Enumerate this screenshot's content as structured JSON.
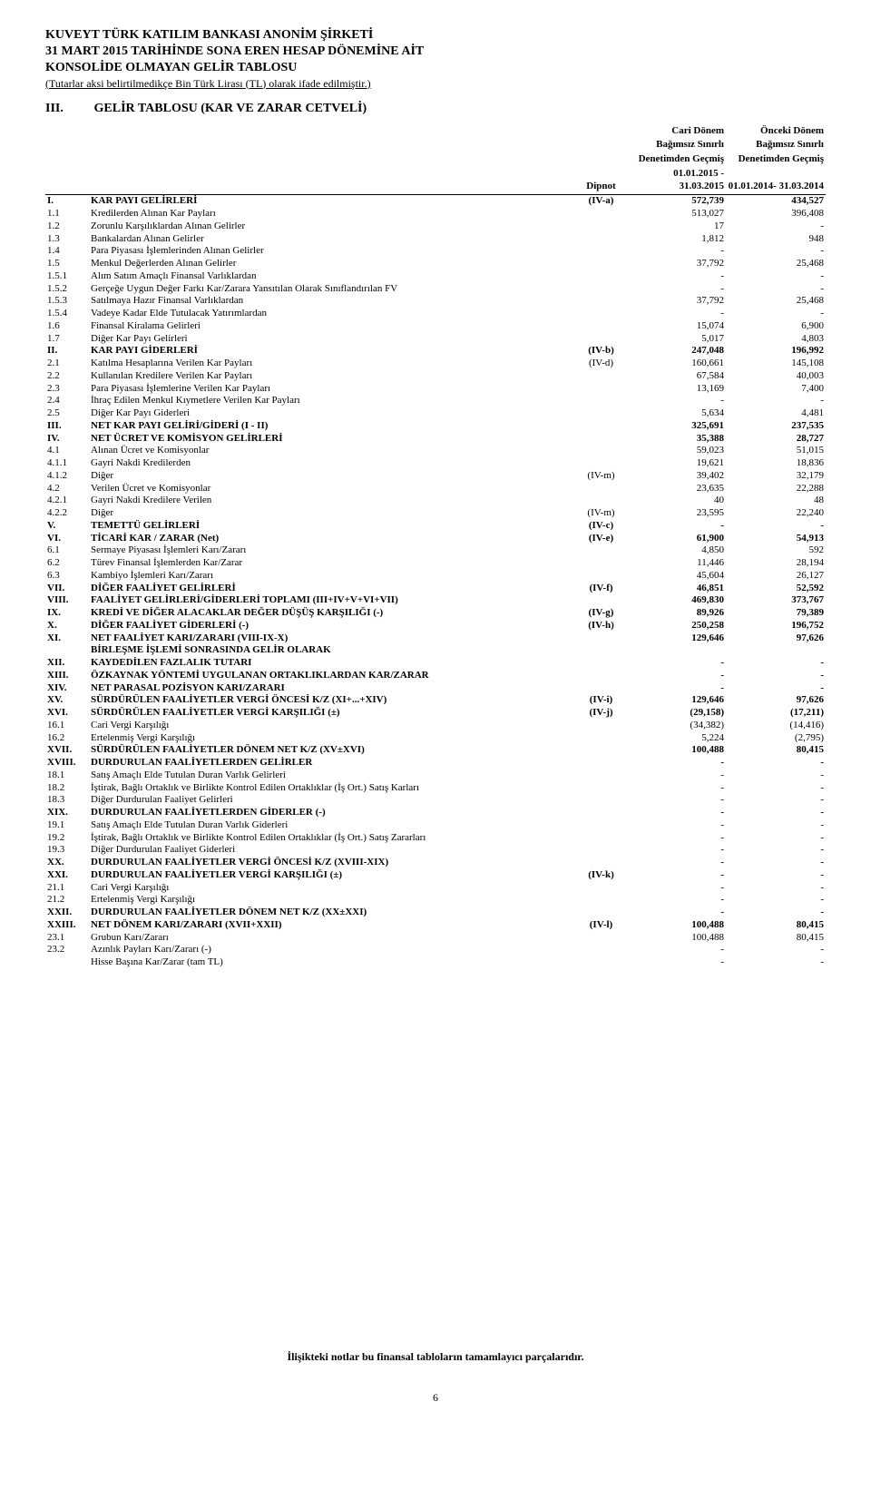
{
  "header": {
    "line1": "KUVEYT TÜRK KATILIM BANKASI ANONİM ŞİRKETİ",
    "line2": "31 MART  2015 TARİHİNDE SONA EREN HESAP DÖNEMİNE AİT",
    "line3": "KONSOLİDE OLMAYAN GELİR TABLOSU",
    "sub": "(Tutarlar aksi belirtilmedikçe Bin Türk Lirası (TL) olarak ifade edilmiştir.)"
  },
  "section": {
    "roman": "III.",
    "title": "GELİR TABLOSU (KAR VE ZARAR CETVELİ)"
  },
  "cols": {
    "note": "Dipnot",
    "cur1": "Cari Dönem",
    "cur2": "Bağımsız Sınırlı",
    "cur3": "Denetimden Geçmiş",
    "cur4": "01.01.2015 - 31.03.2015",
    "prev1": "Önceki Dönem",
    "prev2": "Bağımsız Sınırlı",
    "prev3": "Denetimden Geçmiş",
    "prev4": "01.01.2014- 31.03.2014"
  },
  "rows": [
    {
      "c": "I.",
      "l": "KAR PAYI GELİRLERİ",
      "n": "(IV-a)",
      "v1": "572,739",
      "v2": "434,527",
      "b": true
    },
    {
      "c": "1.1",
      "l": "Kredilerden Alınan Kar Payları",
      "v1": "513,027",
      "v2": "396,408"
    },
    {
      "c": "1.2",
      "l": "Zorunlu Karşılıklardan Alınan Gelirler",
      "v1": "17",
      "v2": "-"
    },
    {
      "c": "1.3",
      "l": "Bankalardan Alınan Gelirler",
      "v1": "1,812",
      "v2": "948"
    },
    {
      "c": "1.4",
      "l": "Para Piyasası İşlemlerinden Alınan Gelirler",
      "v1": "-",
      "v2": "-"
    },
    {
      "c": "1.5",
      "l": "Menkul Değerlerden Alınan Gelirler",
      "v1": "37,792",
      "v2": "25,468"
    },
    {
      "c": "1.5.1",
      "l": "Alım Satım Amaçlı Finansal Varlıklardan",
      "v1": "-",
      "v2": "-"
    },
    {
      "c": "1.5.2",
      "l": "Gerçeğe Uygun Değer Farkı Kar/Zarara Yansıtılan Olarak Sınıflandırılan FV",
      "v1": "-",
      "v2": "-"
    },
    {
      "c": "1.5.3",
      "l": "Satılmaya Hazır Finansal Varlıklardan",
      "v1": "37,792",
      "v2": "25,468"
    },
    {
      "c": "1.5.4",
      "l": "Vadeye Kadar Elde Tutulacak Yatırımlardan",
      "v1": "-",
      "v2": "-"
    },
    {
      "c": "1.6",
      "l": "Finansal Kiralama Gelirleri",
      "v1": "15,074",
      "v2": "6,900"
    },
    {
      "c": "1.7",
      "l": "Diğer Kar Payı Gelirleri",
      "v1": "5,017",
      "v2": "4,803"
    },
    {
      "c": "II.",
      "l": "KAR PAYI GİDERLERİ",
      "n": "(IV-b)",
      "v1": "247,048",
      "v2": "196,992",
      "b": true
    },
    {
      "c": "2.1",
      "l": "Katılma Hesaplarına Verilen Kar Payları",
      "n": "(IV-d)",
      "v1": "160,661",
      "v2": "145,108"
    },
    {
      "c": "2.2",
      "l": "Kullanılan Kredilere Verilen Kar Payları",
      "v1": "67,584",
      "v2": "40,003"
    },
    {
      "c": "2.3",
      "l": "Para Piyasası İşlemlerine Verilen Kar Payları",
      "v1": "13,169",
      "v2": "7,400"
    },
    {
      "c": "2.4",
      "l": "İhraç Edilen Menkul Kıymetlere Verilen Kar Payları",
      "v1": "-",
      "v2": "-"
    },
    {
      "c": "2.5",
      "l": "Diğer Kar Payı Giderleri",
      "v1": "5,634",
      "v2": "4,481"
    },
    {
      "c": "III.",
      "l": "NET KAR PAYI GELİRİ/GİDERİ  (I - II)",
      "v1": "325,691",
      "v2": "237,535",
      "b": true
    },
    {
      "c": "IV.",
      "l": "NET ÜCRET VE KOMİSYON GELİRLERİ",
      "v1": "35,388",
      "v2": "28,727",
      "b": true
    },
    {
      "c": "4.1",
      "l": "Alınan Ücret ve Komisyonlar",
      "v1": "59,023",
      "v2": "51,015"
    },
    {
      "c": "4.1.1",
      "l": "Gayri Nakdi Kredilerden",
      "v1": "19,621",
      "v2": "18,836"
    },
    {
      "c": "4.1.2",
      "l": "Diğer",
      "n": "(IV-m)",
      "v1": "39,402",
      "v2": "32,179"
    },
    {
      "c": "4.2",
      "l": "Verilen Ücret ve Komisyonlar",
      "v1": "23,635",
      "v2": "22,288"
    },
    {
      "c": "4.2.1",
      "l": "Gayri Nakdi Kredilere Verilen",
      "v1": "40",
      "v2": "48"
    },
    {
      "c": "4.2.2",
      "l": "Diğer",
      "n": "(IV-m)",
      "v1": "23,595",
      "v2": "22,240"
    },
    {
      "c": "V.",
      "l": "TEMETTÜ GELİRLERİ",
      "n": "(IV-c)",
      "v1": "-",
      "v2": "-",
      "b": true
    },
    {
      "c": "VI.",
      "l": "TİCARİ KAR / ZARAR (Net)",
      "n": "(IV-e)",
      "v1": "61,900",
      "v2": "54,913",
      "b": true
    },
    {
      "c": "6.1",
      "l": "Sermaye Piyasası İşlemleri Karı/Zararı",
      "v1": "4,850",
      "v2": "592"
    },
    {
      "c": "6.2",
      "l": "Türev Finansal İşlemlerden Kar/Zarar",
      "v1": "11,446",
      "v2": "28,194"
    },
    {
      "c": "6.3",
      "l": "Kambiyo İşlemleri Karı/Zararı",
      "v1": "45,604",
      "v2": "26,127"
    },
    {
      "c": "VII.",
      "l": "DİĞER FAALİYET GELİRLERİ",
      "n": "(IV-f)",
      "v1": "46,851",
      "v2": "52,592",
      "b": true
    },
    {
      "c": "VIII.",
      "l": "FAALİYET GELİRLERİ/GİDERLERİ TOPLAMI (III+IV+V+VI+VII)",
      "v1": "469,830",
      "v2": "373,767",
      "b": true
    },
    {
      "c": "IX.",
      "l": "KREDİ VE DİĞER ALACAKLAR DEĞER DÜŞÜŞ KARŞILIĞI (-)",
      "n": "(IV-g)",
      "v1": "89,926",
      "v2": "79,389",
      "b": true
    },
    {
      "c": "X.",
      "l": "DİĞER FAALİYET GİDERLERİ (-)",
      "n": "(IV-h)",
      "v1": "250,258",
      "v2": "196,752",
      "b": true
    },
    {
      "c": "XI.",
      "l": "NET FAALİYET KARI/ZARARI (VIII-IX-X)",
      "v1": "129,646",
      "v2": "97,626",
      "b": true
    },
    {
      "c": "",
      "l": "BİRLEŞME İŞLEMİ SONRASINDA GELİR OLARAK",
      "b": true
    },
    {
      "c": "XII.",
      "l": "KAYDEDİLEN FAZLALIK TUTARI",
      "v1": "-",
      "v2": "-",
      "b": true
    },
    {
      "c": "XIII.",
      "l": "ÖZKAYNAK YÖNTEMİ UYGULANAN ORTAKLIKLARDAN KAR/ZARAR",
      "v1": "-",
      "v2": "-",
      "b": true
    },
    {
      "c": "XIV.",
      "l": "NET PARASAL POZİSYON KARI/ZARARI",
      "v1": "-",
      "v2": "-",
      "b": true
    },
    {
      "c": "XV.",
      "l": "SÜRDÜRÜLEN FAALİYETLER VERGİ ÖNCESİ K/Z (XI+...+XIV)",
      "n": "(IV-i)",
      "v1": "129,646",
      "v2": "97,626",
      "b": true
    },
    {
      "c": "XVI.",
      "l": "SÜRDÜRÜLEN FAALİYETLER VERGİ KARŞILIĞI (±)",
      "n": "(IV-j)",
      "v1": "(29,158)",
      "v2": "(17,211)",
      "b": true
    },
    {
      "c": "16.1",
      "l": "Cari Vergi Karşılığı",
      "v1": "(34,382)",
      "v2": "(14,416)"
    },
    {
      "c": "16.2",
      "l": "Ertelenmiş Vergi Karşılığı",
      "v1": "5,224",
      "v2": "(2,795)"
    },
    {
      "c": "XVII.",
      "l": "SÜRDÜRÜLEN FAALİYETLER DÖNEM NET K/Z (XV±XVI)",
      "v1": "100,488",
      "v2": "80,415",
      "b": true
    },
    {
      "c": "XVIII.",
      "l": "DURDURULAN FAALİYETLERDEN GELİRLER",
      "v1": "-",
      "v2": "-",
      "b": true
    },
    {
      "c": "18.1",
      "l": "Satış Amaçlı Elde Tutulan Duran Varlık Gelirleri",
      "v1": "-",
      "v2": "-"
    },
    {
      "c": "18.2",
      "l": "İştirak, Bağlı Ortaklık ve Birlikte Kontrol Edilen Ortaklıklar (İş Ort.) Satış Karları",
      "v1": "-",
      "v2": "-"
    },
    {
      "c": "18.3",
      "l": "Diğer Durdurulan Faaliyet Gelirleri",
      "v1": "-",
      "v2": "-"
    },
    {
      "c": "XIX.",
      "l": "DURDURULAN FAALİYETLERDEN GİDERLER (-)",
      "v1": "-",
      "v2": "-",
      "b": true
    },
    {
      "c": "19.1",
      "l": "Satış Amaçlı Elde Tutulan Duran Varlık Giderleri",
      "v1": "-",
      "v2": "-"
    },
    {
      "c": "19.2",
      "l": "İştirak, Bağlı Ortaklık ve Birlikte Kontrol Edilen Ortaklıklar (İş Ort.) Satış Zararları",
      "v1": "-",
      "v2": "-"
    },
    {
      "c": "19.3",
      "l": "Diğer Durdurulan Faaliyet Giderleri",
      "v1": "-",
      "v2": "-"
    },
    {
      "c": "XX.",
      "l": "DURDURULAN FAALİYETLER VERGİ ÖNCESİ K/Z (XVIII-XIX)",
      "v1": "-",
      "v2": "-",
      "b": true
    },
    {
      "c": "XXI.",
      "l": "DURDURULAN FAALİYETLER VERGİ KARŞILIĞI (±)",
      "n": "(IV-k)",
      "v1": "-",
      "v2": "-",
      "b": true
    },
    {
      "c": "21.1",
      "l": "Cari Vergi Karşılığı",
      "v1": "-",
      "v2": "-"
    },
    {
      "c": "21.2",
      "l": "Ertelenmiş Vergi Karşılığı",
      "v1": "-",
      "v2": "-"
    },
    {
      "c": "XXII.",
      "l": "DURDURULAN FAALİYETLER DÖNEM NET K/Z (XX±XXI)",
      "v1": "-",
      "v2": "-",
      "b": true
    },
    {
      "c": "XXIII.",
      "l": "NET DÖNEM KARI/ZARARI (XVII+XXII)",
      "n": "(IV-l)",
      "v1": "100,488",
      "v2": "80,415",
      "b": true
    },
    {
      "c": "23.1",
      "l": "Grubun Karı/Zararı",
      "v1": "100,488",
      "v2": "80,415"
    },
    {
      "c": "23.2",
      "l": "Azınlık Payları Karı/Zararı (-)",
      "v1": "-",
      "v2": "-"
    },
    {
      "c": "",
      "l": "Hisse Başına Kar/Zarar (tam TL)",
      "v1": "-",
      "v2": "-"
    }
  ],
  "footer": "İlişikteki notlar bu finansal tabloların tamamlayıcı parçalarıdır.",
  "pageNum": "6"
}
